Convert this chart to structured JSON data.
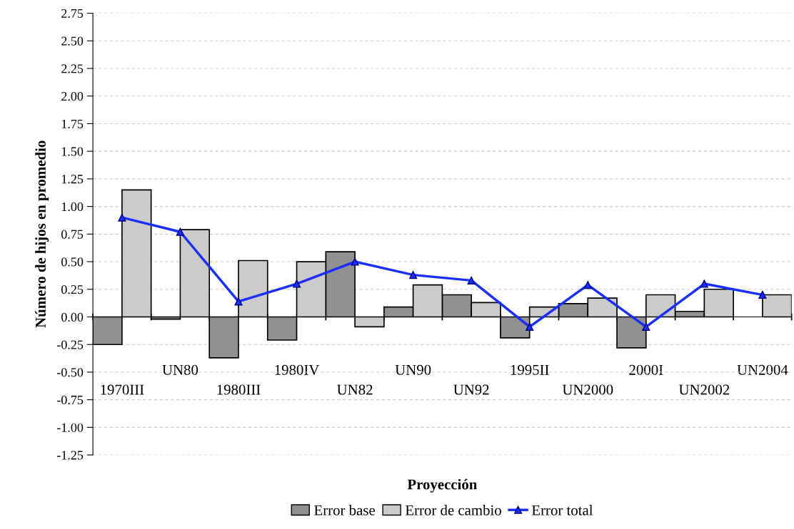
{
  "chart_data": {
    "type": "bar",
    "xlabel": "Proyección",
    "ylabel": "Número de hijos en promedio",
    "categories": [
      "1970III",
      "UN80",
      "1980III",
      "1980IV",
      "UN82",
      "UN90",
      "UN92",
      "1995II",
      "UN2000",
      "2000I",
      "UN2002",
      "UN2004"
    ],
    "series": [
      {
        "name": "Error base",
        "color": "#919191",
        "values": [
          -0.25,
          -0.02,
          -0.37,
          -0.21,
          0.59,
          0.09,
          0.2,
          -0.19,
          0.12,
          -0.28,
          0.05,
          null
        ]
      },
      {
        "name": "Error de cambio",
        "color": "#cbcbcb",
        "values": [
          1.15,
          0.79,
          0.51,
          0.5,
          -0.09,
          0.29,
          0.13,
          0.09,
          0.17,
          0.2,
          0.25,
          0.2
        ]
      },
      {
        "name": "Error total",
        "type": "line",
        "color": "#1a2dff",
        "marker": "triangle",
        "line_style": "solid",
        "values": [
          0.9,
          0.77,
          0.14,
          0.3,
          0.5,
          0.38,
          0.33,
          -0.09,
          0.29,
          -0.09,
          0.3,
          0.2
        ]
      }
    ],
    "ylim": [
      -1.25,
      2.75
    ],
    "yticks": [
      {
        "value": -1.25,
        "label": "-1.25"
      },
      {
        "value": -1.0,
        "label": "-1.00"
      },
      {
        "value": -0.75,
        "label": "-0.75"
      },
      {
        "value": -0.5,
        "label": "-0.50"
      },
      {
        "value": -0.25,
        "label": "-0.25"
      },
      {
        "value": 0,
        "label": "0.00"
      },
      {
        "value": 0.25,
        "label": "0.25"
      },
      {
        "value": 0.5,
        "label": "0.50"
      },
      {
        "value": 0.75,
        "label": "0.75"
      },
      {
        "value": 1.0,
        "label": "1.00"
      },
      {
        "value": 1.25,
        "label": "1.25"
      },
      {
        "value": 1.5,
        "label": "1.50"
      },
      {
        "value": 1.75,
        "label": "1.75"
      },
      {
        "value": 2.0,
        "label": "2.00"
      },
      {
        "value": 2.25,
        "label": "2.25"
      },
      {
        "value": 2.5,
        "label": "2.50"
      },
      {
        "value": 2.75,
        "label": "2.75"
      }
    ],
    "grid": "y",
    "legend": "bottom"
  }
}
